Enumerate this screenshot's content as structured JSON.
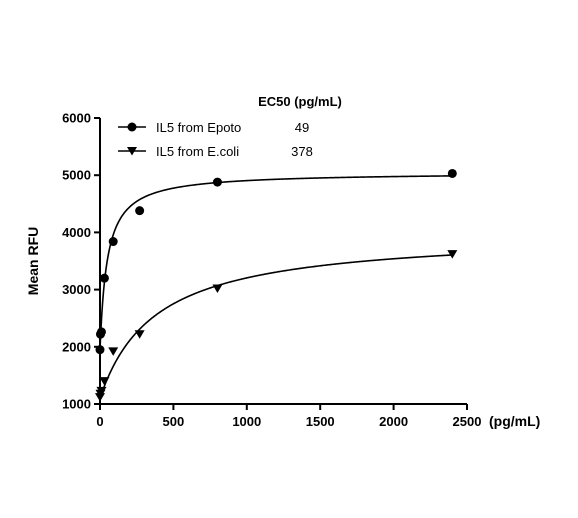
{
  "chart_data": {
    "type": "scatter",
    "title": "",
    "xlabel": "(pg/mL)",
    "ylabel": "Mean RFU",
    "xlim": [
      0,
      2500
    ],
    "ylim": [
      1000,
      6000
    ],
    "x_ticks": [
      0,
      500,
      1000,
      1500,
      2000,
      2500
    ],
    "y_ticks": [
      1000,
      2000,
      3000,
      4000,
      5000,
      6000
    ],
    "grid": false,
    "legend_position": "top-left",
    "legend_header": "EC50 (pg/mL)",
    "series": [
      {
        "name": "IL5 from Epoto",
        "ec50": "49",
        "marker": "circle",
        "color": "#000000",
        "x": [
          0,
          3.3,
          10,
          30,
          90,
          270,
          800,
          2400
        ],
        "y": [
          1950,
          2220,
          2260,
          3200,
          3840,
          4380,
          4880,
          5030
        ],
        "curve": {
          "bottom": 1950,
          "top": 5050,
          "ec50": 49
        }
      },
      {
        "name": "IL5 from E.coli",
        "ec50": "378",
        "marker": "triangle-down",
        "color": "#000000",
        "x": [
          0,
          3.3,
          10,
          30,
          90,
          270,
          800,
          2400
        ],
        "y": [
          1120,
          1180,
          1230,
          1400,
          1920,
          2220,
          3020,
          3620
        ],
        "curve": {
          "bottom": 1100,
          "top": 4000,
          "ec50": 378
        }
      }
    ]
  }
}
